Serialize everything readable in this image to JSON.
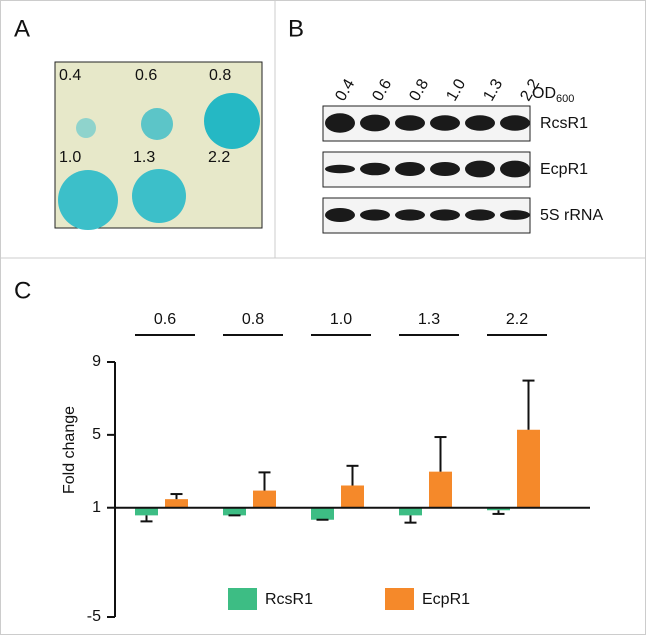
{
  "panel_a": {
    "label": "A",
    "spots": [
      "0.4",
      "0.6",
      "0.8",
      "1.0",
      "1.3",
      "2.2"
    ]
  },
  "panel_b": {
    "label": "B",
    "lanes": [
      "0.4",
      "0.6",
      "0.8",
      "1.0",
      "1.3",
      "2.2"
    ],
    "od_label": "OD",
    "od_subscript": "600",
    "rows": [
      "RcsR1",
      "EcpR1",
      "5S rRNA"
    ]
  },
  "panel_c": {
    "label": "C"
  },
  "chart_data": {
    "type": "bar",
    "ylabel": "Fold change",
    "categories": [
      "0.6",
      "0.8",
      "1.0",
      "1.3",
      "2.2"
    ],
    "series": [
      {
        "name": "RcsR1",
        "color": "#3dbd84",
        "values": [
          0.58,
          0.58,
          0.34,
          0.58,
          0.86
        ],
        "errors": [
          0.33,
          0,
          0,
          0.4,
          0.2
        ]
      },
      {
        "name": "EcpR1",
        "color": "#f5892a",
        "values": [
          1.47,
          1.94,
          2.22,
          2.98,
          5.28
        ],
        "errors": [
          0.28,
          1.0,
          1.08,
          1.9,
          2.7
        ]
      }
    ],
    "ylim": [
      -5,
      9
    ],
    "yticks": [
      -5,
      1,
      5,
      9
    ],
    "baseline": 1
  }
}
